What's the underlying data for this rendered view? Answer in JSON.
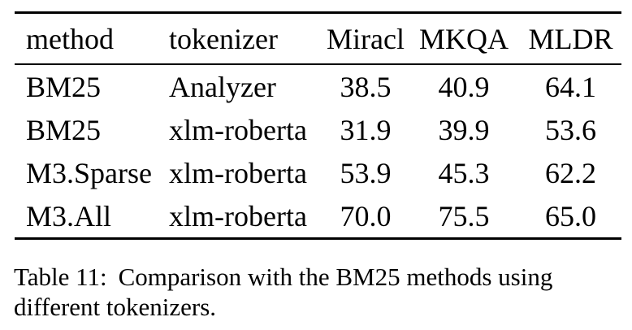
{
  "table": {
    "columns": {
      "method": "method",
      "tokenizer": "tokenizer",
      "miracl": "Miracl",
      "mkqa": "MKQA",
      "mldr": "MLDR"
    },
    "rows": [
      {
        "method": "BM25",
        "tokenizer": "Analyzer",
        "miracl": "38.5",
        "mkqa": "40.9",
        "mldr": "64.1"
      },
      {
        "method": "BM25",
        "tokenizer": "xlm-roberta",
        "miracl": "31.9",
        "mkqa": "39.9",
        "mldr": "53.6"
      },
      {
        "method": "M3.Sparse",
        "tokenizer": "xlm-roberta",
        "miracl": "53.9",
        "mkqa": "45.3",
        "mldr": "62.2"
      },
      {
        "method": "M3.All",
        "tokenizer": "xlm-roberta",
        "miracl": "70.0",
        "mkqa": "75.5",
        "mldr": "65.0"
      }
    ]
  },
  "caption": {
    "label": "Table 11:",
    "text": "Comparison with the BM25 methods using different tokenizers."
  },
  "colors": {
    "text": "#000000",
    "rule": "#000000",
    "background": "#ffffff"
  }
}
